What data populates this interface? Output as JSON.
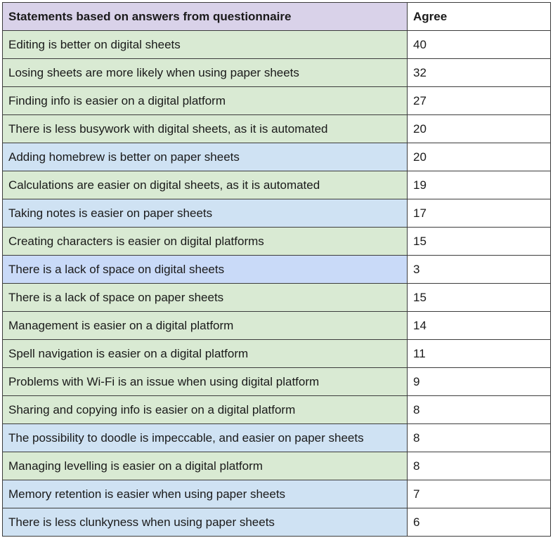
{
  "table": {
    "header": {
      "statement": "Statements based on answers from questionnaire",
      "agree": "Agree",
      "header_color": "#d9d2e9"
    },
    "category_colors": {
      "green": "#d9ead3",
      "blue": "#cfe2f3",
      "darkblue": "#c9daf8"
    },
    "rows": [
      {
        "statement": "Editing is better on digital sheets",
        "agree": "40",
        "color": "green"
      },
      {
        "statement": "Losing sheets are more likely when using paper sheets",
        "agree": "32",
        "color": "green"
      },
      {
        "statement": "Finding info is easier on a digital platform",
        "agree": "27",
        "color": "green"
      },
      {
        "statement": "There is less busywork with digital sheets, as it is automated",
        "agree": "20",
        "color": "green"
      },
      {
        "statement": "Adding homebrew is better on paper sheets",
        "agree": "20",
        "color": "blue"
      },
      {
        "statement": "Calculations are easier on digital sheets, as it is automated",
        "agree": "19",
        "color": "green"
      },
      {
        "statement": "Taking notes is easier on paper sheets",
        "agree": "17",
        "color": "blue"
      },
      {
        "statement": "Creating characters is easier on digital platforms",
        "agree": "15",
        "color": "green"
      },
      {
        "statement": "There is a lack of space on digital sheets",
        "agree": "3",
        "color": "darkblue"
      },
      {
        "statement": "There is a lack of space on paper sheets",
        "agree": "15",
        "color": "green"
      },
      {
        "statement": "Management is easier on a digital platform",
        "agree": "14",
        "color": "green"
      },
      {
        "statement": "Spell navigation is easier on a digital platform",
        "agree": "11",
        "color": "green"
      },
      {
        "statement": "Problems with Wi-Fi is an issue when using digital platform",
        "agree": "9",
        "color": "green"
      },
      {
        "statement": "Sharing and copying info is easier on a digital platform",
        "agree": "8",
        "color": "green"
      },
      {
        "statement": "The possibility to doodle is impeccable, and easier on paper sheets",
        "agree": "8",
        "color": "blue"
      },
      {
        "statement": "Managing levelling is easier on a digital platform",
        "agree": "8",
        "color": "green"
      },
      {
        "statement": "Memory retention is easier when using paper sheets",
        "agree": "7",
        "color": "blue"
      },
      {
        "statement": "There is less clunkyness when using paper sheets",
        "agree": "6",
        "color": "blue"
      }
    ]
  }
}
